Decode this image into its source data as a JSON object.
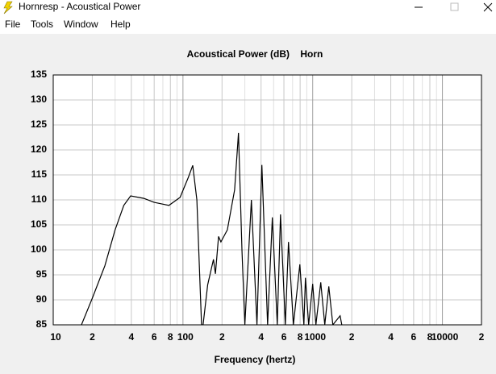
{
  "window": {
    "title": "Hornresp - Acoustical Power",
    "menu": [
      "File",
      "Tools",
      "Window",
      "Help"
    ]
  },
  "chart_data": {
    "type": "line",
    "title": "Acoustical Power (dB)    Horn",
    "x_label": "Frequency (hertz)",
    "xlog": true,
    "grid": true,
    "xlim": [
      10,
      20000
    ],
    "xticks": [
      10,
      {
        "value": 20,
        "label": "2"
      },
      {
        "value": 40,
        "label": "4"
      },
      {
        "value": 60,
        "label": "6"
      },
      {
        "value": 80,
        "label": "8"
      },
      100,
      {
        "value": 200,
        "label": "2"
      },
      {
        "value": 400,
        "label": "4"
      },
      {
        "value": 600,
        "label": "6"
      },
      {
        "value": 800,
        "label": "8"
      },
      1000,
      {
        "value": 2000,
        "label": "2"
      },
      {
        "value": 4000,
        "label": "4"
      },
      {
        "value": 6000,
        "label": "6"
      },
      {
        "value": 8000,
        "label": "8"
      },
      10000,
      {
        "value": 20000,
        "label": "2"
      }
    ],
    "xgrid_minor": [
      30,
      50,
      70,
      90,
      300,
      500,
      700,
      900,
      3000,
      5000,
      7000,
      9000
    ],
    "ylim": [
      85,
      135
    ],
    "yticks": [
      85,
      90,
      95,
      100,
      105,
      110,
      115,
      120,
      125,
      130,
      135
    ],
    "series": [
      {
        "color": "#000000",
        "x": [
          16.5,
          20,
          25,
          30,
          35,
          39.5,
          50,
          60,
          78,
          95,
          110,
          119,
          128,
          139,
          143,
          155,
          172,
          178,
          188,
          196,
          220,
          250,
          268,
          285,
          300,
          337,
          372,
          406,
          449,
          489,
          533,
          565,
          615,
          651,
          710,
          796,
          855,
          879,
          931,
          1000,
          1059,
          1153,
          1239,
          1331,
          1429,
          1626,
          1675
        ],
        "values": [
          85,
          90.3,
          96.8,
          104,
          108.9,
          110.8,
          110.3,
          109.5,
          108.9,
          110.5,
          114.5,
          116.9,
          110,
          85,
          85,
          93,
          98.1,
          95.2,
          102.7,
          101.6,
          104,
          112,
          123.4,
          100,
          85,
          110,
          85,
          117,
          85,
          106.5,
          85,
          107.1,
          85,
          101.6,
          85,
          97.1,
          85,
          94.4,
          85,
          93.2,
          85,
          93.5,
          85,
          92.7,
          85,
          86.8,
          85
        ]
      }
    ]
  }
}
